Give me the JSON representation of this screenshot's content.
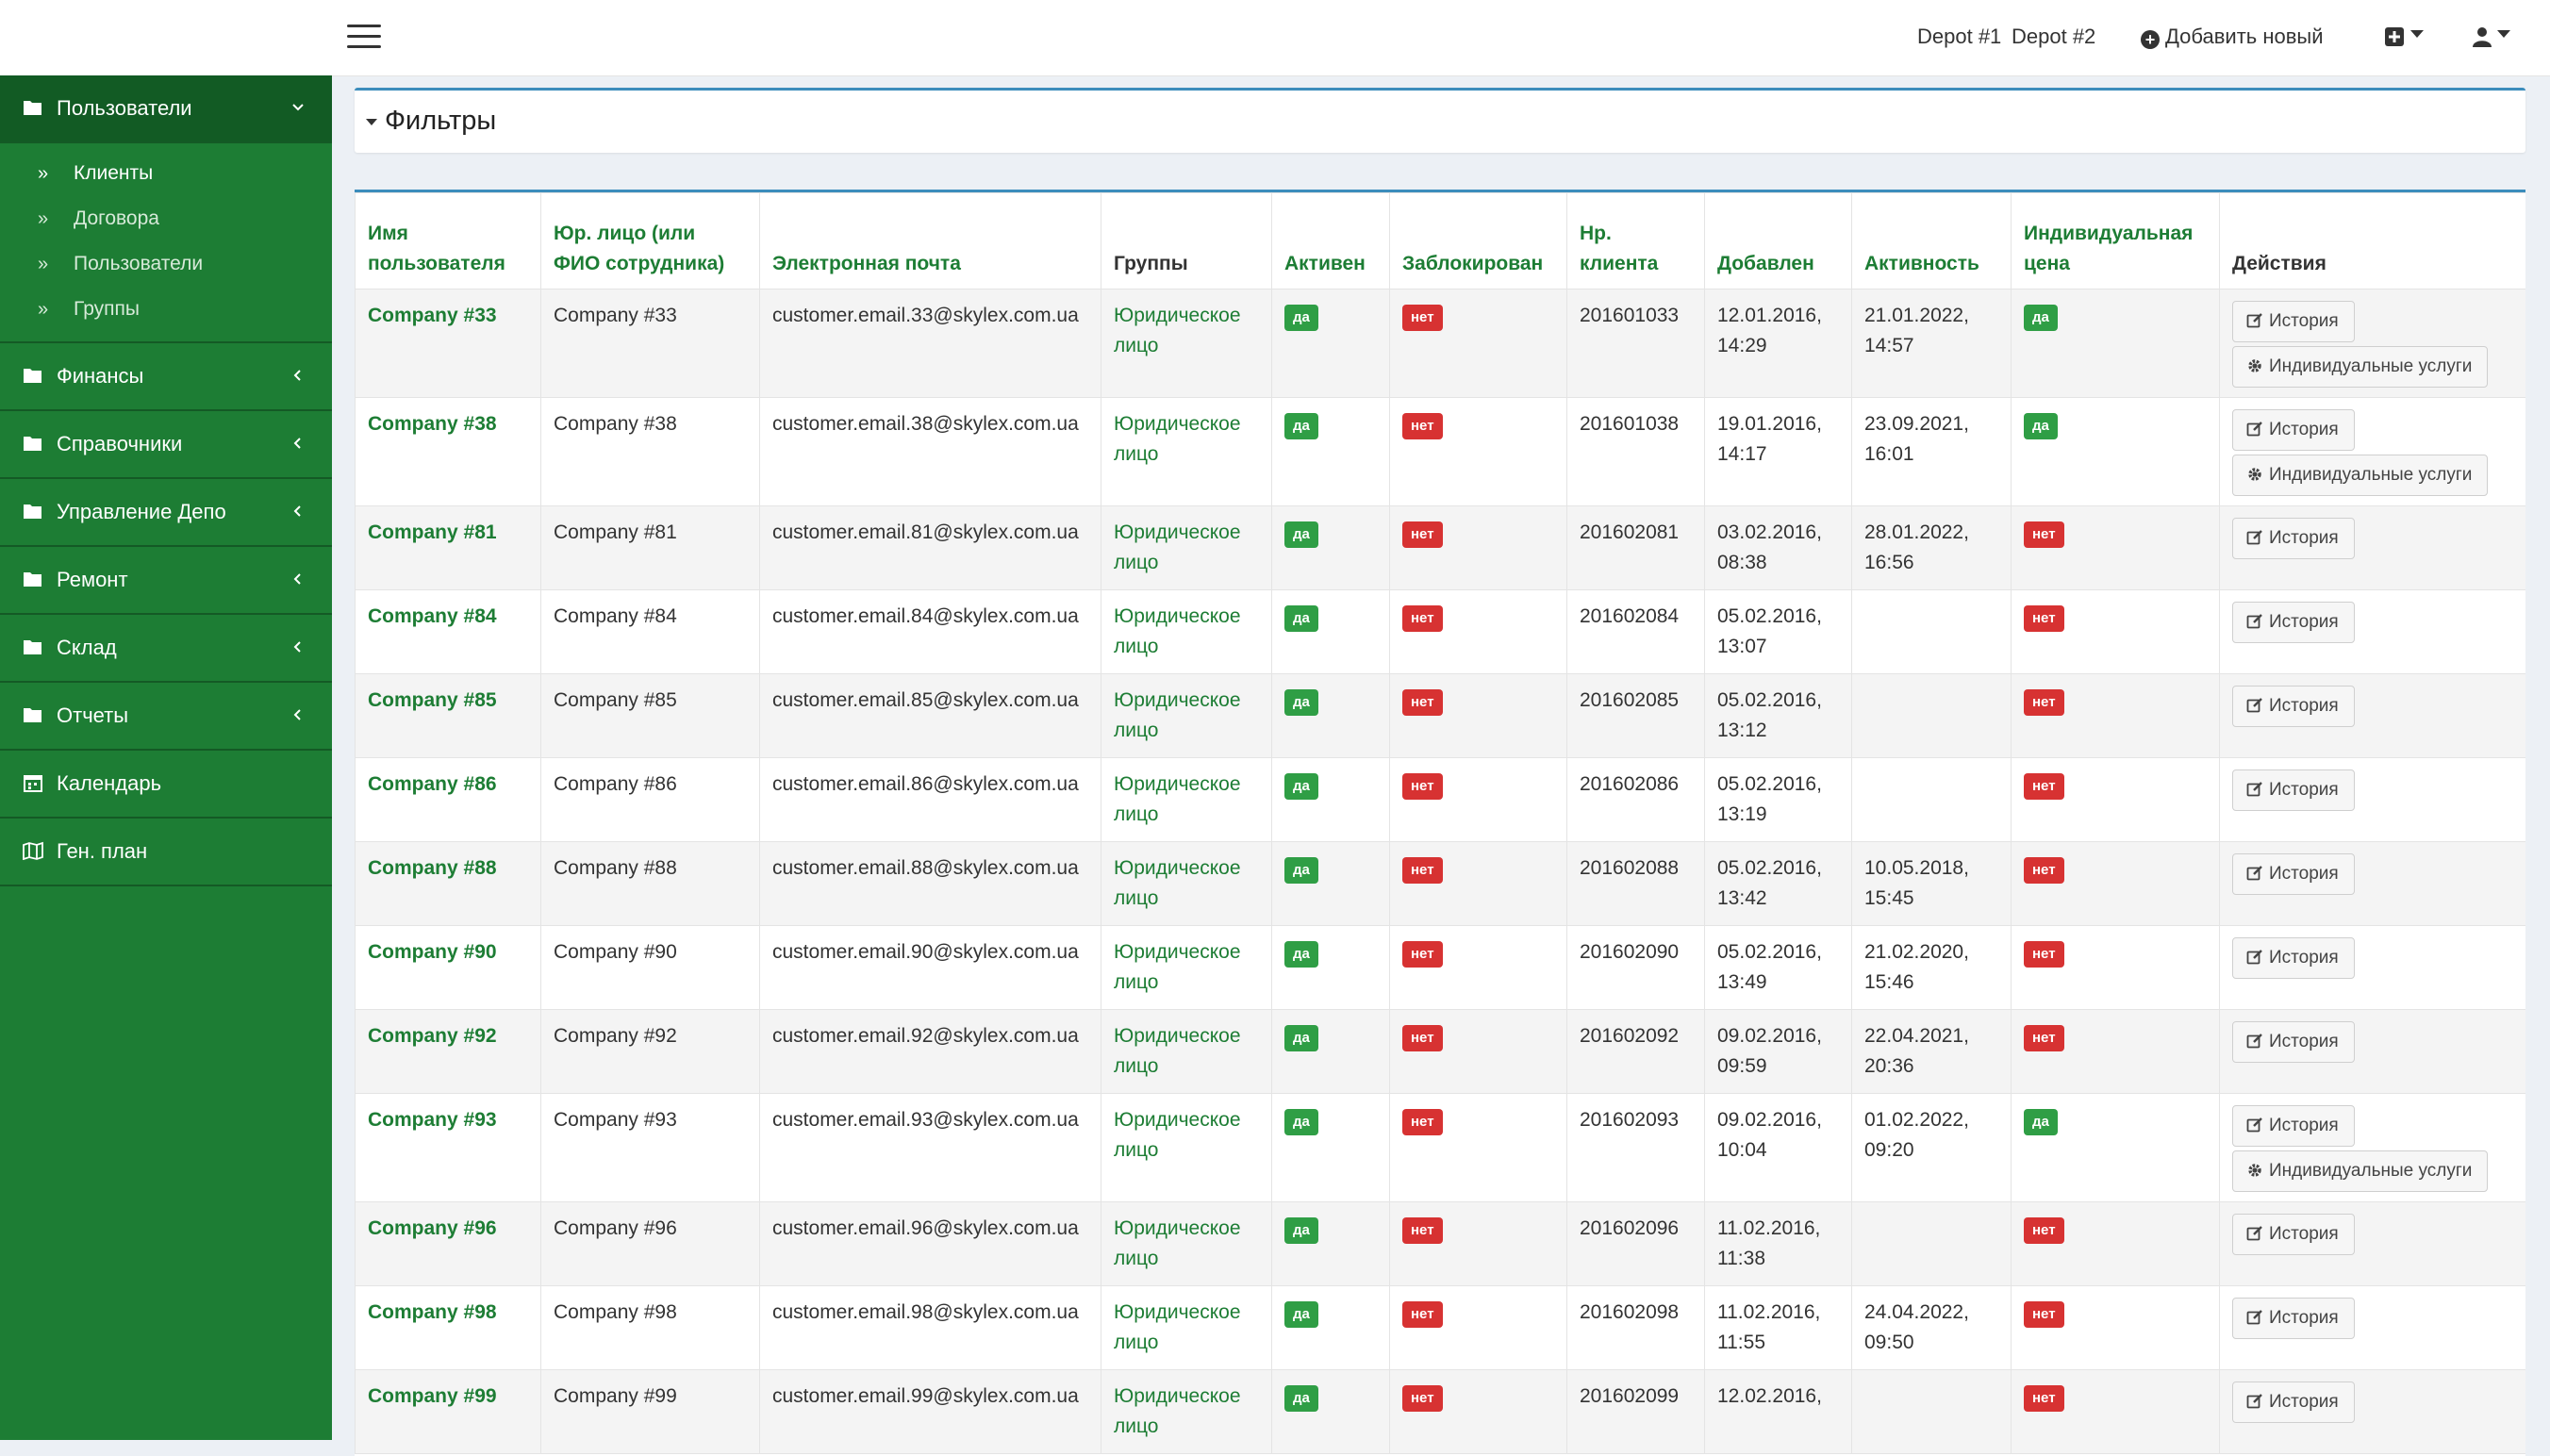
{
  "topbar": {
    "depots": [
      "Depot #1",
      "Depot #2"
    ],
    "add_new": "Добавить новый"
  },
  "sidebar": {
    "items": [
      {
        "label": "Пользователи",
        "icon": "folder-open-icon",
        "expanded": true
      },
      {
        "label": "Финансы",
        "icon": "folder-icon"
      },
      {
        "label": "Справочники",
        "icon": "folder-icon"
      },
      {
        "label": "Управление Депо",
        "icon": "folder-icon"
      },
      {
        "label": "Ремонт",
        "icon": "folder-icon"
      },
      {
        "label": "Склад",
        "icon": "folder-icon"
      },
      {
        "label": "Отчеты",
        "icon": "folder-icon"
      },
      {
        "label": "Календарь",
        "icon": "calendar-icon"
      },
      {
        "label": "Ген. план",
        "icon": "map-icon"
      }
    ],
    "subitems": [
      "Клиенты",
      "Договора",
      "Пользователи",
      "Группы"
    ]
  },
  "filters": {
    "title": "Фильтры"
  },
  "table": {
    "headers": [
      "Имя пользователя",
      "Юр. лицо (или ФИО сотрудника)",
      "Электронная почта",
      "Группы",
      "Активен",
      "Заблокирован",
      "Нр. клиента",
      "Добавлен",
      "Активность",
      "Индивидуальная цена",
      "Действия"
    ],
    "btn_history": "История",
    "btn_services": "Индивидуальные услуги",
    "rows": [
      {
        "name": "Company #33",
        "legal": "Company #33",
        "email": "customer.email.33@skylex.com.ua",
        "group": "Юридическое лицо",
        "active": "да",
        "blocked": "нет",
        "num": "201601033",
        "added": "12.01.2016, 14:29",
        "activity": "21.01.2022, 14:57",
        "price": "да",
        "services": true
      },
      {
        "name": "Company #38",
        "legal": "Company #38",
        "email": "customer.email.38@skylex.com.ua",
        "group": "Юридическое лицо",
        "active": "да",
        "blocked": "нет",
        "num": "201601038",
        "added": "19.01.2016, 14:17",
        "activity": "23.09.2021, 16:01",
        "price": "да",
        "services": true
      },
      {
        "name": "Company #81",
        "legal": "Company #81",
        "email": "customer.email.81@skylex.com.ua",
        "group": "Юридическое лицо",
        "active": "да",
        "blocked": "нет",
        "num": "201602081",
        "added": "03.02.2016, 08:38",
        "activity": "28.01.2022, 16:56",
        "price": "нет",
        "services": false
      },
      {
        "name": "Company #84",
        "legal": "Company #84",
        "email": "customer.email.84@skylex.com.ua",
        "group": "Юридическое лицо",
        "active": "да",
        "blocked": "нет",
        "num": "201602084",
        "added": "05.02.2016, 13:07",
        "activity": "",
        "price": "нет",
        "services": false
      },
      {
        "name": "Company #85",
        "legal": "Company #85",
        "email": "customer.email.85@skylex.com.ua",
        "group": "Юридическое лицо",
        "active": "да",
        "blocked": "нет",
        "num": "201602085",
        "added": "05.02.2016, 13:12",
        "activity": "",
        "price": "нет",
        "services": false
      },
      {
        "name": "Company #86",
        "legal": "Company #86",
        "email": "customer.email.86@skylex.com.ua",
        "group": "Юридическое лицо",
        "active": "да",
        "blocked": "нет",
        "num": "201602086",
        "added": "05.02.2016, 13:19",
        "activity": "",
        "price": "нет",
        "services": false
      },
      {
        "name": "Company #88",
        "legal": "Company #88",
        "email": "customer.email.88@skylex.com.ua",
        "group": "Юридическое лицо",
        "active": "да",
        "blocked": "нет",
        "num": "201602088",
        "added": "05.02.2016, 13:42",
        "activity": "10.05.2018, 15:45",
        "price": "нет",
        "services": false
      },
      {
        "name": "Company #90",
        "legal": "Company #90",
        "email": "customer.email.90@skylex.com.ua",
        "group": "Юридическое лицо",
        "active": "да",
        "blocked": "нет",
        "num": "201602090",
        "added": "05.02.2016, 13:49",
        "activity": "21.02.2020, 15:46",
        "price": "нет",
        "services": false
      },
      {
        "name": "Company #92",
        "legal": "Company #92",
        "email": "customer.email.92@skylex.com.ua",
        "group": "Юридическое лицо",
        "active": "да",
        "blocked": "нет",
        "num": "201602092",
        "added": "09.02.2016, 09:59",
        "activity": "22.04.2021, 20:36",
        "price": "нет",
        "services": false
      },
      {
        "name": "Company #93",
        "legal": "Company #93",
        "email": "customer.email.93@skylex.com.ua",
        "group": "Юридическое лицо",
        "active": "да",
        "blocked": "нет",
        "num": "201602093",
        "added": "09.02.2016, 10:04",
        "activity": "01.02.2022, 09:20",
        "price": "да",
        "services": true
      },
      {
        "name": "Company #96",
        "legal": "Company #96",
        "email": "customer.email.96@skylex.com.ua",
        "group": "Юридическое лицо",
        "active": "да",
        "blocked": "нет",
        "num": "201602096",
        "added": "11.02.2016, 11:38",
        "activity": "",
        "price": "нет",
        "services": false
      },
      {
        "name": "Company #98",
        "legal": "Company #98",
        "email": "customer.email.98@skylex.com.ua",
        "group": "Юридическое лицо",
        "active": "да",
        "blocked": "нет",
        "num": "201602098",
        "added": "11.02.2016, 11:55",
        "activity": "24.04.2022, 09:50",
        "price": "нет",
        "services": false
      },
      {
        "name": "Company #99",
        "legal": "Company #99",
        "email": "customer.email.99@skylex.com.ua",
        "group": "Юридическое лицо",
        "active": "да",
        "blocked": "нет",
        "num": "201602099",
        "added": "12.02.2016,",
        "activity": "",
        "price": "нет",
        "services": false
      }
    ]
  }
}
